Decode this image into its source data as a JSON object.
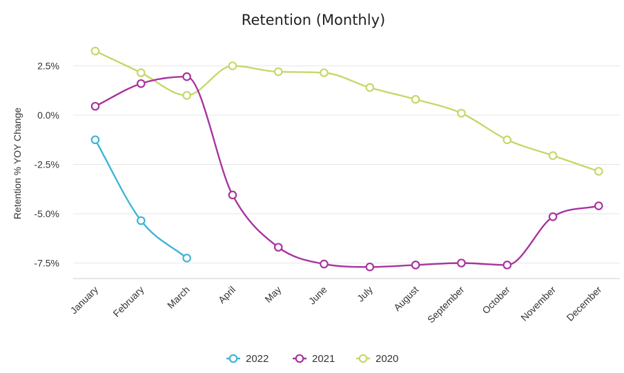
{
  "chart_data": {
    "type": "line",
    "title": "Retention (Monthly)",
    "xlabel": "",
    "ylabel": "Retention % YOY Change",
    "categories": [
      "January",
      "February",
      "March",
      "April",
      "May",
      "June",
      "July",
      "August",
      "September",
      "October",
      "November",
      "December"
    ],
    "y_ticks": [
      "2.5%",
      "0.0%",
      "-2.5%",
      "-5.0%",
      "-7.5%"
    ],
    "y_tick_values": [
      2.5,
      0,
      -2.5,
      -5,
      -7.5
    ],
    "ylim": [
      -8.3,
      3.5
    ],
    "grid": true,
    "legend_position": "bottom",
    "series": [
      {
        "name": "2022",
        "color": "#3fb4d6",
        "values": [
          -1.25,
          -5.35,
          -7.25,
          null,
          null,
          null,
          null,
          null,
          null,
          null,
          null,
          null
        ]
      },
      {
        "name": "2021",
        "color": "#a8339f",
        "values": [
          0.45,
          1.6,
          1.95,
          -4.05,
          -6.7,
          -7.55,
          -7.7,
          -7.6,
          -7.5,
          -7.6,
          -5.15,
          -4.6
        ]
      },
      {
        "name": "2020",
        "color": "#c3d96a",
        "values": [
          3.25,
          2.15,
          1.0,
          2.5,
          2.2,
          2.15,
          1.4,
          0.8,
          0.1,
          -1.25,
          -2.05,
          -2.85
        ]
      }
    ]
  }
}
